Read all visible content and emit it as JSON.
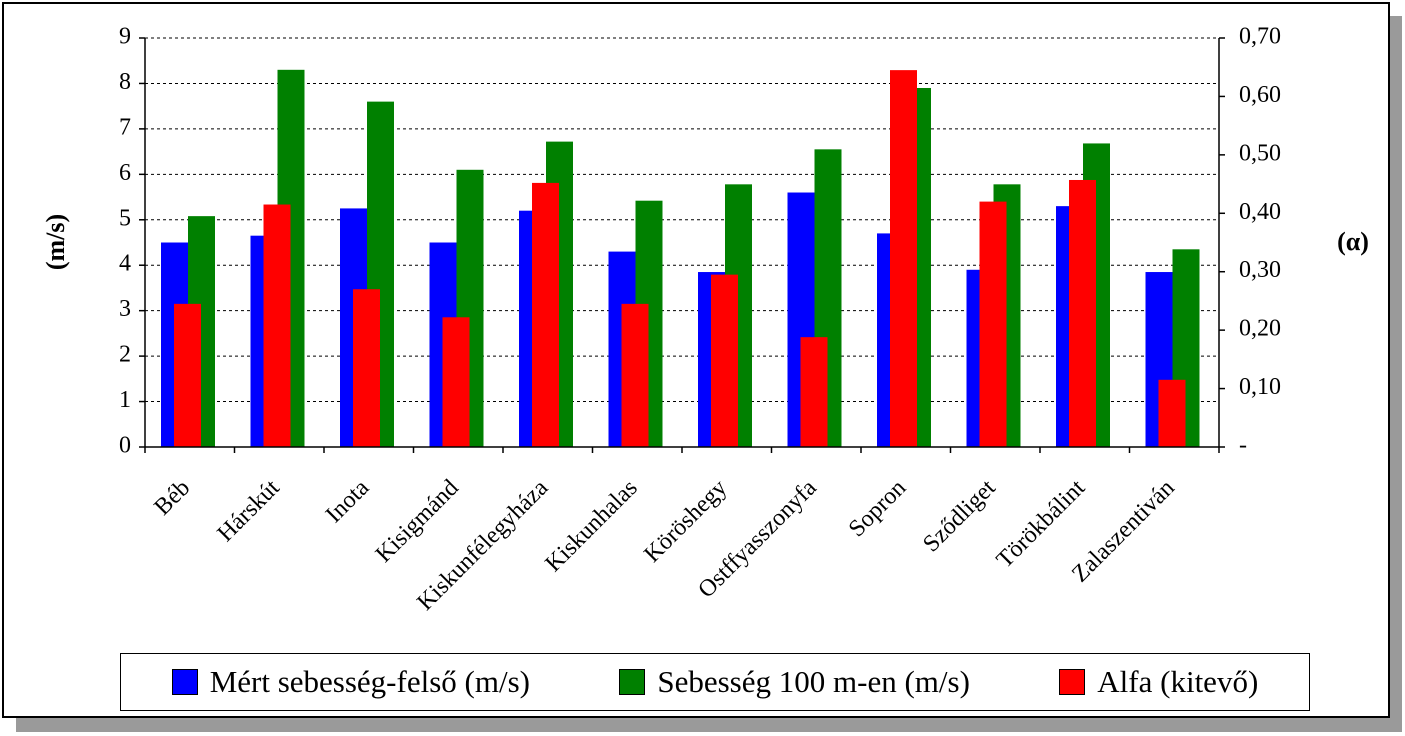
{
  "chart_data": {
    "type": "bar",
    "categories": [
      "Béb",
      "Hárskút",
      "Inota",
      "Kisigmánd",
      "Kiskunfélegyháza",
      "Kiskunhalas",
      "Köröshegy",
      "Ostffyasszonyfa",
      "Sopron",
      "Sződliget",
      "Törökbálint",
      "Zalaszentiván"
    ],
    "series": [
      {
        "name": "Mért sebesség-felső (m/s)",
        "axis": "left",
        "color": "#0000ff",
        "values": [
          4.5,
          4.65,
          5.25,
          4.5,
          5.2,
          4.3,
          3.85,
          5.6,
          4.7,
          3.9,
          5.3,
          3.85
        ]
      },
      {
        "name": "Sebesség 100 m-en (m/s)",
        "axis": "left",
        "color": "#008000",
        "values": [
          5.08,
          8.3,
          7.6,
          6.1,
          6.72,
          5.42,
          5.78,
          6.55,
          7.9,
          5.78,
          6.68,
          4.35
        ]
      },
      {
        "name": "Alfa (kitevő)",
        "axis": "right",
        "color": "#ff0000",
        "values": [
          0.245,
          0.415,
          0.27,
          0.222,
          0.452,
          0.245,
          0.295,
          0.188,
          0.645,
          0.42,
          0.457,
          0.115
        ]
      }
    ],
    "y_left": {
      "label": "(m/s)",
      "range": [
        0,
        9
      ],
      "ticks": [
        "0",
        "1",
        "2",
        "3",
        "4",
        "5",
        "6",
        "7",
        "8",
        "9"
      ]
    },
    "y_right": {
      "label": "(α)",
      "range": [
        0,
        0.7
      ],
      "ticks": [
        "-",
        "0,10",
        "0,20",
        "0,30",
        "0,40",
        "0,50",
        "0,60",
        "0,70"
      ]
    },
    "grid": true,
    "legend_position": "bottom"
  }
}
